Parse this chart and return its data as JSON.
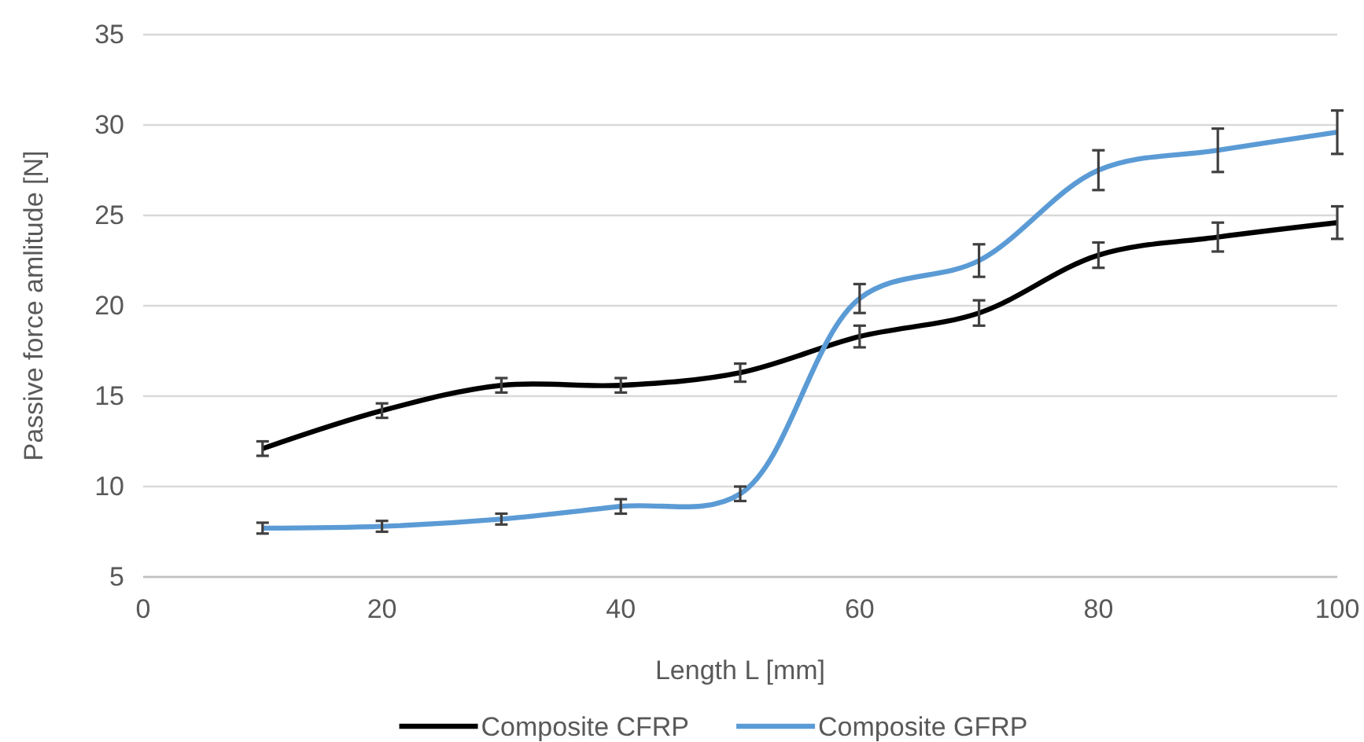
{
  "chart_data": {
    "type": "line",
    "xlabel": "Length L [mm]",
    "ylabel": "Passive force amlitude [N]",
    "x": [
      10,
      20,
      30,
      40,
      50,
      60,
      70,
      80,
      90,
      100
    ],
    "series": [
      {
        "name": "Composite CFRP",
        "color": "#000000",
        "values": [
          12.1,
          14.2,
          15.6,
          15.6,
          16.3,
          18.3,
          19.6,
          22.8,
          23.8,
          24.6
        ],
        "errors": [
          0.4,
          0.4,
          0.4,
          0.4,
          0.5,
          0.6,
          0.7,
          0.7,
          0.8,
          0.9
        ]
      },
      {
        "name": "Composite GFRP",
        "color": "#5b9bd5",
        "values": [
          7.7,
          7.8,
          8.2,
          8.9,
          9.6,
          20.4,
          22.5,
          27.5,
          28.6,
          29.6
        ],
        "errors": [
          0.3,
          0.3,
          0.3,
          0.4,
          0.4,
          0.8,
          0.9,
          1.1,
          1.2,
          1.2
        ]
      }
    ],
    "xlim": [
      0,
      100
    ],
    "xticks": [
      0,
      20,
      40,
      60,
      80,
      100
    ],
    "ylim": [
      5,
      35
    ],
    "yticks": [
      5,
      10,
      15,
      20,
      25,
      30,
      35
    ],
    "grid": "y",
    "legend": "bottom",
    "marker": "none",
    "line_style": "solid"
  }
}
